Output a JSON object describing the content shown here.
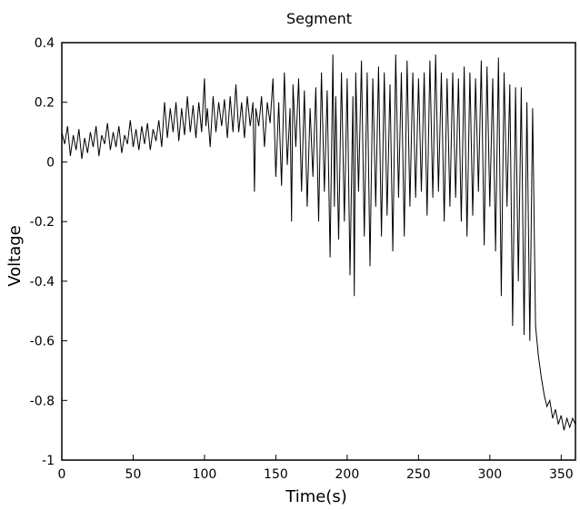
{
  "chart_data": {
    "type": "line",
    "title": "Segment",
    "xlabel": "Time(s)",
    "ylabel": "Voltage",
    "xlim": [
      0,
      360
    ],
    "ylim": [
      -1,
      0.4
    ],
    "x_ticks": [
      0,
      50,
      100,
      150,
      200,
      250,
      300,
      350
    ],
    "y_ticks": [
      0.4,
      0.2,
      0,
      -0.2,
      -0.4,
      -0.6,
      -0.8,
      -1
    ],
    "grid": false,
    "legend": "none",
    "line_color": "#000000",
    "series": [
      {
        "x": [
          0,
          2,
          4,
          6,
          8,
          10,
          12,
          14,
          16,
          18,
          20,
          22,
          24,
          26,
          28,
          30,
          32,
          34,
          36,
          38,
          40,
          42,
          44,
          46,
          48,
          50,
          52,
          54,
          56,
          58,
          60,
          62,
          64,
          66,
          68,
          70,
          72,
          74,
          76,
          78,
          80,
          82,
          84,
          86,
          88,
          90,
          92,
          94,
          96,
          98,
          100,
          101,
          102,
          104,
          106,
          108,
          110,
          112,
          114,
          116,
          118,
          120,
          122,
          124,
          126,
          128,
          130,
          132,
          134,
          135,
          136,
          138,
          140,
          142,
          144,
          146,
          148,
          150,
          152,
          154,
          156,
          158,
          160,
          161,
          162,
          164,
          166,
          168,
          170,
          172,
          174,
          176,
          178,
          180,
          182,
          184,
          186,
          188,
          190,
          191,
          192,
          194,
          196,
          198,
          200,
          202,
          204,
          205,
          206,
          208,
          210,
          212,
          214,
          216,
          218,
          220,
          222,
          224,
          226,
          228,
          230,
          232,
          234,
          236,
          238,
          240,
          242,
          244,
          246,
          248,
          250,
          252,
          254,
          256,
          258,
          260,
          262,
          264,
          266,
          268,
          270,
          272,
          274,
          276,
          278,
          280,
          282,
          284,
          286,
          288,
          290,
          292,
          294,
          296,
          298,
          300,
          302,
          304,
          306,
          308,
          310,
          312,
          314,
          316,
          318,
          320,
          322,
          324,
          326,
          328,
          330,
          332,
          334,
          336,
          338,
          340,
          342,
          344,
          346,
          348,
          350,
          352,
          354,
          356,
          358,
          360
        ],
        "values": [
          0.1,
          0.06,
          0.12,
          0.02,
          0.09,
          0.04,
          0.11,
          0.01,
          0.08,
          0.03,
          0.1,
          0.05,
          0.12,
          0.02,
          0.09,
          0.06,
          0.13,
          0.04,
          0.1,
          0.05,
          0.12,
          0.03,
          0.09,
          0.06,
          0.14,
          0.05,
          0.11,
          0.04,
          0.12,
          0.06,
          0.13,
          0.04,
          0.11,
          0.07,
          0.14,
          0.05,
          0.2,
          0.08,
          0.18,
          0.1,
          0.2,
          0.07,
          0.18,
          0.09,
          0.22,
          0.1,
          0.19,
          0.08,
          0.2,
          0.1,
          0.28,
          0.12,
          0.18,
          0.05,
          0.22,
          0.1,
          0.2,
          0.12,
          0.21,
          0.08,
          0.22,
          0.1,
          0.26,
          0.1,
          0.2,
          0.08,
          0.22,
          0.12,
          0.2,
          -0.1,
          0.18,
          0.12,
          0.22,
          0.05,
          0.2,
          0.13,
          0.28,
          -0.05,
          0.2,
          -0.08,
          0.3,
          -0.01,
          0.18,
          -0.2,
          0.26,
          0.05,
          0.28,
          -0.1,
          0.24,
          -0.15,
          0.18,
          -0.05,
          0.25,
          -0.2,
          0.3,
          -0.1,
          0.24,
          -0.32,
          0.36,
          -0.15,
          0.22,
          -0.26,
          0.3,
          -0.2,
          0.28,
          -0.38,
          0.22,
          -0.45,
          0.3,
          -0.1,
          0.34,
          -0.25,
          0.3,
          -0.35,
          0.28,
          -0.15,
          0.32,
          -0.25,
          0.3,
          -0.18,
          0.26,
          -0.3,
          0.36,
          -0.12,
          0.3,
          -0.25,
          0.34,
          -0.15,
          0.3,
          -0.12,
          0.28,
          -0.1,
          0.3,
          -0.18,
          0.34,
          -0.12,
          0.36,
          -0.1,
          0.3,
          -0.2,
          0.28,
          -0.15,
          0.3,
          -0.12,
          0.28,
          -0.2,
          0.32,
          -0.25,
          0.3,
          -0.18,
          0.28,
          -0.1,
          0.34,
          -0.28,
          0.32,
          -0.15,
          0.28,
          -0.3,
          0.35,
          -0.45,
          0.3,
          -0.15,
          0.26,
          -0.55,
          0.25,
          -0.4,
          0.25,
          -0.58,
          0.2,
          -0.6,
          0.18,
          -0.55,
          -0.65,
          -0.72,
          -0.78,
          -0.82,
          -0.8,
          -0.86,
          -0.83,
          -0.88,
          -0.85,
          -0.9,
          -0.86,
          -0.89,
          -0.86,
          -0.88
        ]
      }
    ]
  }
}
